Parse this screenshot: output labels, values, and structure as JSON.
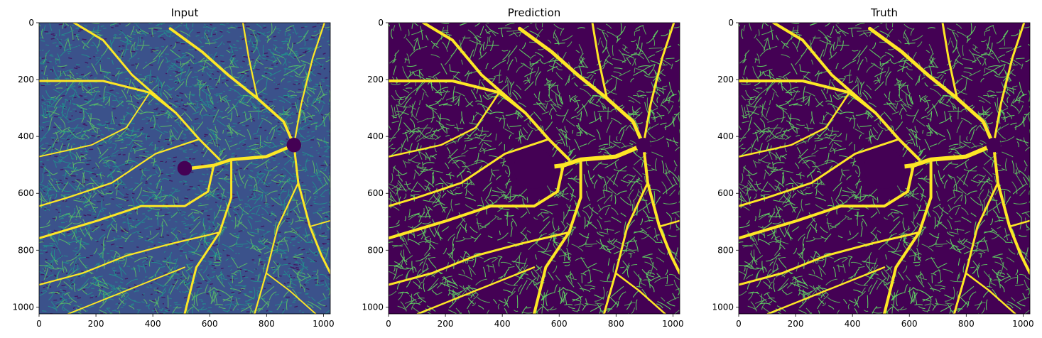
{
  "chart_data": [
    {
      "type": "heatmap",
      "title": "Input",
      "xlabel": "",
      "ylabel": "",
      "xlim": [
        0,
        1024
      ],
      "ylim": [
        1024,
        0
      ],
      "x_ticks": [
        "0",
        "200",
        "400",
        "600",
        "800",
        "1000"
      ],
      "y_ticks": [
        "0",
        "200",
        "400",
        "600",
        "800",
        "1000"
      ],
      "colormap": "viridis",
      "content": "noisy OCTA vessel image"
    },
    {
      "type": "heatmap",
      "title": "Prediction",
      "xlabel": "",
      "ylabel": "",
      "xlim": [
        0,
        1024
      ],
      "ylim": [
        1024,
        0
      ],
      "x_ticks": [
        "0",
        "200",
        "400",
        "600",
        "800",
        "1000"
      ],
      "y_ticks": [
        "0",
        "200",
        "400",
        "600",
        "800",
        "1000"
      ],
      "colormap": "viridis",
      "content": "segmented vessel mask"
    },
    {
      "type": "heatmap",
      "title": "Truth",
      "xlabel": "",
      "ylabel": "",
      "xlim": [
        0,
        1024
      ],
      "ylim": [
        1024,
        0
      ],
      "x_ticks": [
        "0",
        "200",
        "400",
        "600",
        "800",
        "1000"
      ],
      "y_ticks": [
        "0",
        "200",
        "400",
        "600",
        "800",
        "1000"
      ],
      "colormap": "viridis",
      "content": "ground-truth vessel mask"
    }
  ],
  "colors": {
    "background_dark": "#440154",
    "background_noise": "#3b528b",
    "vessel_mid": "#21918c",
    "vessel_light": "#5ec962",
    "vessel_main": "#fde725"
  }
}
